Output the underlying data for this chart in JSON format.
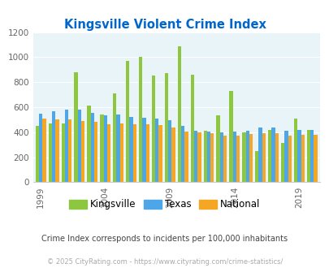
{
  "title": "Kingsville Violent Crime Index",
  "subtitle": "Crime Index corresponds to incidents per 100,000 inhabitants",
  "footer": "© 2025 CityRating.com - https://www.cityrating.com/crime-statistics/",
  "years": [
    1999,
    2000,
    2001,
    2002,
    2003,
    2004,
    2005,
    2006,
    2007,
    2008,
    2009,
    2010,
    2011,
    2012,
    2013,
    2014,
    2015,
    2016,
    2017,
    2018,
    2019,
    2020
  ],
  "kingsville": [
    450,
    470,
    470,
    880,
    610,
    540,
    710,
    970,
    1003,
    855,
    870,
    1085,
    860,
    410,
    535,
    730,
    400,
    250,
    420,
    315,
    510,
    420
  ],
  "texas": [
    550,
    570,
    580,
    580,
    555,
    535,
    540,
    525,
    515,
    510,
    495,
    450,
    410,
    405,
    400,
    405,
    410,
    435,
    440,
    410,
    415,
    420
  ],
  "national": [
    510,
    500,
    500,
    490,
    480,
    465,
    470,
    465,
    465,
    455,
    435,
    405,
    400,
    390,
    375,
    375,
    385,
    395,
    395,
    375,
    380,
    380
  ],
  "bar_width": 0.27,
  "ylim": [
    0,
    1200
  ],
  "yticks": [
    0,
    200,
    400,
    600,
    800,
    1000,
    1200
  ],
  "xtick_years": [
    1999,
    2004,
    2009,
    2014,
    2019
  ],
  "color_kingsville": "#8dc63f",
  "color_texas": "#4da6e8",
  "color_national": "#f5a623",
  "bg_color": "#e8f4f8",
  "title_color": "#0066cc",
  "subtitle_color": "#444444",
  "footer_color": "#aaaaaa",
  "legend_labels": [
    "Kingsville",
    "Texas",
    "National"
  ]
}
